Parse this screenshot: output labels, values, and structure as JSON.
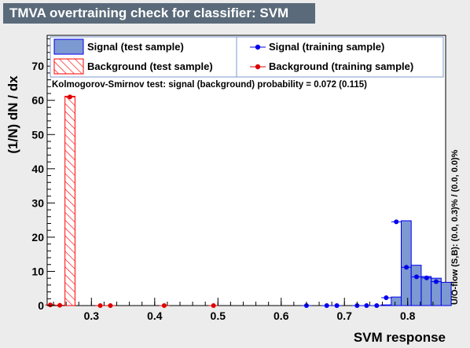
{
  "window": {
    "title": "TMVA overtraining check for classifier: SVM"
  },
  "chart_data": {
    "type": "bar",
    "title": "TMVA overtraining check for classifier: SVM",
    "xlabel": "SVM response",
    "ylabel": "(1/N) dN / dx",
    "xlim": [
      0.23,
      0.86
    ],
    "ylim": [
      0,
      79
    ],
    "x_ticks": [
      0.3,
      0.4,
      0.5,
      0.6,
      0.7,
      0.8
    ],
    "x_tick_labels": [
      "0.3",
      "0.4",
      "0.5",
      "0.6",
      "0.7",
      "0.8"
    ],
    "y_ticks": [
      0,
      10,
      20,
      30,
      40,
      50,
      60,
      70
    ],
    "y_tick_labels": [
      "0",
      "10",
      "20",
      "30",
      "40",
      "50",
      "60",
      "70"
    ],
    "grid": false,
    "bin_width": 0.0158,
    "series": [
      {
        "name": "Signal (test sample)",
        "style": "filled-histogram",
        "color": "#7d99d1",
        "edge_color": "#0000ee",
        "bins": [
          {
            "x0": 0.7582,
            "value": 0.2
          },
          {
            "x0": 0.774,
            "value": 2.5
          },
          {
            "x0": 0.7898,
            "value": 24.8
          },
          {
            "x0": 0.8056,
            "value": 11.8
          },
          {
            "x0": 0.8214,
            "value": 8.5
          },
          {
            "x0": 0.8372,
            "value": 8.0
          },
          {
            "x0": 0.853,
            "value": 6.8
          }
        ]
      },
      {
        "name": "Background (test sample)",
        "style": "hatched-histogram",
        "color": "#ff0000",
        "bins": [
          {
            "x0": 0.2582,
            "value": 61.2
          }
        ]
      },
      {
        "name": "Signal (training sample)",
        "style": "markers",
        "color": "#0000ee",
        "points": [
          {
            "x": 0.64,
            "y": 0.0
          },
          {
            "x": 0.672,
            "y": 0.0
          },
          {
            "x": 0.688,
            "y": 0.0
          },
          {
            "x": 0.72,
            "y": 0.0
          },
          {
            "x": 0.735,
            "y": 0.0
          },
          {
            "x": 0.751,
            "y": 0.0
          },
          {
            "x": 0.766,
            "y": 2.3
          },
          {
            "x": 0.782,
            "y": 24.5
          },
          {
            "x": 0.798,
            "y": 11.2
          },
          {
            "x": 0.814,
            "y": 8.4
          },
          {
            "x": 0.83,
            "y": 8.1
          },
          {
            "x": 0.845,
            "y": 7.0
          }
        ]
      },
      {
        "name": "Background (training sample)",
        "style": "markers",
        "color": "#dd0000",
        "points": [
          {
            "x": 0.235,
            "y": 0.2
          },
          {
            "x": 0.25,
            "y": 0.1
          },
          {
            "x": 0.266,
            "y": 61.0
          },
          {
            "x": 0.314,
            "y": 0.0
          },
          {
            "x": 0.33,
            "y": 0.0
          },
          {
            "x": 0.415,
            "y": 0.0
          },
          {
            "x": 0.493,
            "y": 0.0
          }
        ]
      }
    ],
    "legend": [
      {
        "label": "Signal (test sample)",
        "swatch": "filled"
      },
      {
        "label": "Background (test sample)",
        "swatch": "hatched"
      },
      {
        "label": "Signal (training sample)",
        "swatch": "blue-dot"
      },
      {
        "label": "Background (training sample)",
        "swatch": "red-dot"
      }
    ],
    "annotations": {
      "ks_test": "Kolmogorov-Smirnov test: signal (background) probability = 0.072 (0.115)",
      "overflow": "U/O-flow (S,B): (0.0, 0.3)% / (0.0, 0.0)%"
    }
  }
}
